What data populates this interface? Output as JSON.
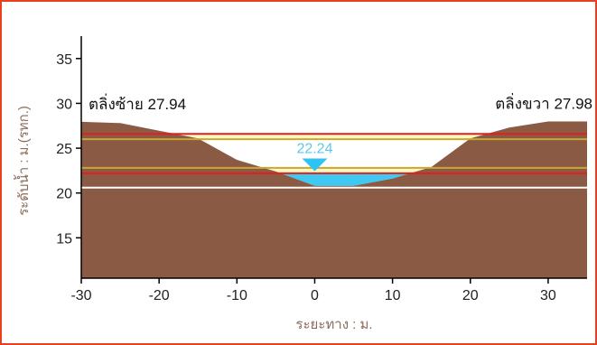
{
  "chart_data": {
    "type": "area",
    "xlabel": "ระยะทาง : ม.",
    "ylabel": "ระดับน้ำ : ม.(รทก.)",
    "xlim": [
      -30,
      35
    ],
    "ylim": [
      10.5,
      37.5
    ],
    "x_ticks": [
      -30,
      -20,
      -10,
      0,
      10,
      20,
      30
    ],
    "y_ticks": [
      15,
      20,
      25,
      30,
      35
    ],
    "grid": false,
    "colors": {
      "ground": "#8b5a44",
      "water": "#3fc8f2",
      "water_marker": "#2ec3f3",
      "warning_band": "#fdf7c2",
      "red_line": "#e02020",
      "yellow_line": "#c8a832",
      "white_line": "#ffffff",
      "water_label": "#5bc8f0"
    },
    "cross_section": {
      "x": [
        -30,
        -25,
        -15,
        -10,
        -5,
        0,
        5,
        10,
        15,
        20,
        25,
        30,
        35
      ],
      "y": [
        27.94,
        27.8,
        26.1,
        23.7,
        22.4,
        20.8,
        20.8,
        21.6,
        22.9,
        26.1,
        27.3,
        27.98,
        27.98
      ]
    },
    "water_level": {
      "value": 22.24,
      "label": "22.24"
    },
    "reference_lines": [
      {
        "y": 26.6,
        "color": "#e02020"
      },
      {
        "y": 26.0,
        "color": "#c8a832"
      },
      {
        "y": 22.8,
        "color": "#c8a832"
      },
      {
        "y": 22.2,
        "color": "#e02020"
      },
      {
        "y": 20.6,
        "color": "#ffffff"
      }
    ],
    "warning_band": [
      26.0,
      26.6
    ],
    "left_bank": {
      "label": "ตลิ่งซ้าย 27.94",
      "value": 27.94
    },
    "right_bank": {
      "label": "ตลิ่งขวา 27.98",
      "value": 27.98
    }
  }
}
